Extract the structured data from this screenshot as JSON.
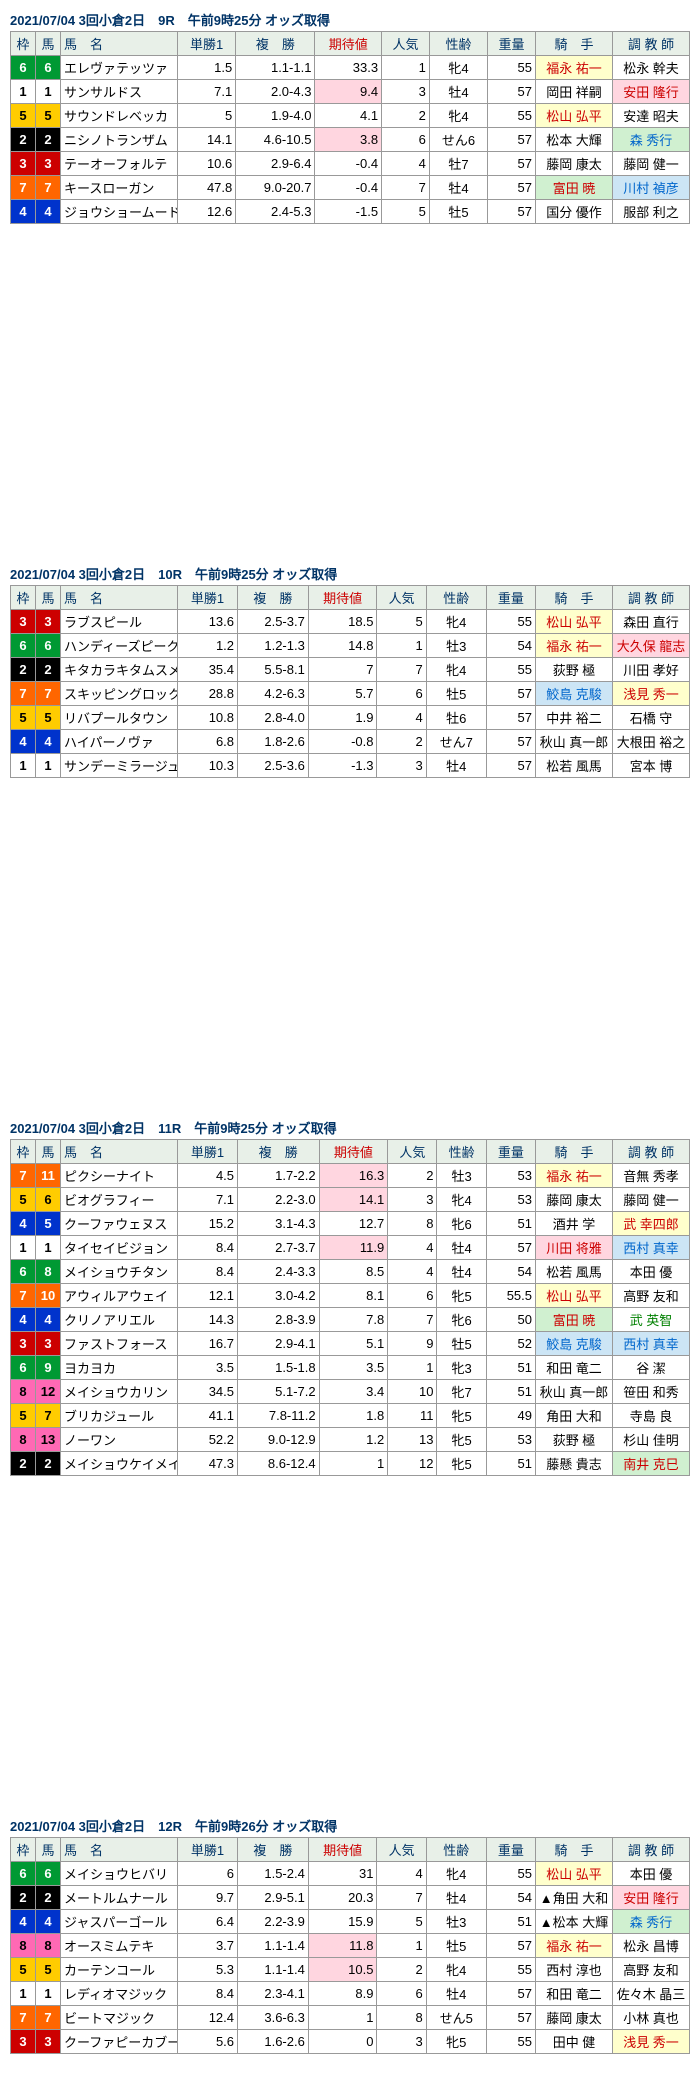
{
  "wakuColors": {
    "1": "#ffffff",
    "2": "#000000",
    "3": "#cc0000",
    "4": "#0033cc",
    "5": "#ffcc00",
    "6": "#009933",
    "7": "#ff6600",
    "8": "#ff69b4"
  },
  "wakuText": {
    "1": "#000",
    "2": "#fff",
    "3": "#fff",
    "4": "#fff",
    "5": "#000",
    "6": "#fff",
    "7": "#fff",
    "8": "#000"
  },
  "headers": [
    "枠",
    "馬",
    "馬　名",
    "単勝1",
    "複　勝",
    "期待値",
    "人気",
    "性齢",
    "重量",
    "騎　手",
    "調 教 師"
  ],
  "races": [
    {
      "title": "2021/07/04  3回小倉2日　9R　午前9時25分 オッズ取得",
      "rows": [
        {
          "w": 6,
          "u": 6,
          "name": "エレヴァテッツァ",
          "tan": "1.5",
          "fuku": "1.1-1.1",
          "exp": "33.3",
          "hl": "",
          "nin": 1,
          "sex": "牝4",
          "wt": 55,
          "j": "福永 祐一",
          "jc": "red-txt",
          "jhl": "hl-yellow",
          "t": "松永 幹夫",
          "tc": "",
          "thl": ""
        },
        {
          "w": 1,
          "u": 1,
          "name": "サンサルドス",
          "tan": "7.1",
          "fuku": "2.0-4.3",
          "exp": "9.4",
          "hl": "hl-pink",
          "nin": 3,
          "sex": "牡4",
          "wt": 57,
          "j": "岡田 祥嗣",
          "jc": "",
          "jhl": "",
          "t": "安田 隆行",
          "tc": "red-txt",
          "thl": "hl-pink"
        },
        {
          "w": 5,
          "u": 5,
          "name": "サウンドレベッカ",
          "tan": "5",
          "fuku": "1.9-4.0",
          "exp": "4.1",
          "hl": "",
          "nin": 2,
          "sex": "牝4",
          "wt": 55,
          "j": "松山 弘平",
          "jc": "red-txt",
          "jhl": "hl-yellow",
          "t": "安達 昭夫",
          "tc": "",
          "thl": ""
        },
        {
          "w": 2,
          "u": 2,
          "name": "ニシノトランザム",
          "tan": "14.1",
          "fuku": "4.6-10.5",
          "exp": "3.8",
          "hl": "hl-pink",
          "nin": 6,
          "sex": "せん6",
          "wt": 57,
          "j": "松本 大輝",
          "jc": "",
          "jhl": "",
          "t": "森 秀行",
          "tc": "blue-txt",
          "thl": "hl-green"
        },
        {
          "w": 3,
          "u": 3,
          "name": "テーオーフォルテ",
          "tan": "10.6",
          "fuku": "2.9-6.4",
          "exp": "-0.4",
          "hl": "",
          "nin": 4,
          "sex": "牡7",
          "wt": 57,
          "j": "藤岡 康太",
          "jc": "",
          "jhl": "",
          "t": "藤岡 健一",
          "tc": "",
          "thl": ""
        },
        {
          "w": 7,
          "u": 7,
          "name": "キースローガン",
          "tan": "47.8",
          "fuku": "9.0-20.7",
          "exp": "-0.4",
          "hl": "",
          "nin": 7,
          "sex": "牡4",
          "wt": 57,
          "j": "富田 暁",
          "jc": "red-txt",
          "jhl": "hl-green",
          "t": "川村 禎彦",
          "tc": "blue-txt",
          "thl": "hl-blue"
        },
        {
          "w": 4,
          "u": 4,
          "name": "ジョウショームード",
          "tan": "12.6",
          "fuku": "2.4-5.3",
          "exp": "-1.5",
          "hl": "",
          "nin": 5,
          "sex": "牡5",
          "wt": 57,
          "j": "国分 優作",
          "jc": "",
          "jhl": "",
          "t": "服部 利之",
          "tc": "",
          "thl": ""
        }
      ]
    },
    {
      "title": "2021/07/04  3回小倉2日　10R　午前9時25分 オッズ取得",
      "rows": [
        {
          "w": 3,
          "u": 3,
          "name": "ラブスピール",
          "tan": "13.6",
          "fuku": "2.5-3.7",
          "exp": "18.5",
          "hl": "",
          "nin": 5,
          "sex": "牝4",
          "wt": 55,
          "j": "松山 弘平",
          "jc": "red-txt",
          "jhl": "hl-yellow",
          "t": "森田 直行",
          "tc": "",
          "thl": ""
        },
        {
          "w": 6,
          "u": 6,
          "name": "ハンディーズピーク",
          "tan": "1.2",
          "fuku": "1.2-1.3",
          "exp": "14.8",
          "hl": "",
          "nin": 1,
          "sex": "牡3",
          "wt": 54,
          "j": "福永 祐一",
          "jc": "red-txt",
          "jhl": "hl-yellow",
          "t": "大久保 龍志",
          "tc": "red-txt",
          "thl": "hl-pink"
        },
        {
          "w": 2,
          "u": 2,
          "name": "キタカラキタムスメ",
          "tan": "35.4",
          "fuku": "5.5-8.1",
          "exp": "7",
          "hl": "",
          "nin": 7,
          "sex": "牝4",
          "wt": 55,
          "j": "荻野 極",
          "jc": "",
          "jhl": "",
          "t": "川田 孝好",
          "tc": "",
          "thl": ""
        },
        {
          "w": 7,
          "u": 7,
          "name": "スキッピングロック",
          "tan": "28.8",
          "fuku": "4.2-6.3",
          "exp": "5.7",
          "hl": "",
          "nin": 6,
          "sex": "牡5",
          "wt": 57,
          "j": "鮫島 克駿",
          "jc": "blue-txt",
          "jhl": "hl-blue",
          "t": "浅見 秀一",
          "tc": "red-txt",
          "thl": "hl-yellow"
        },
        {
          "w": 5,
          "u": 5,
          "name": "リバプールタウン",
          "tan": "10.8",
          "fuku": "2.8-4.0",
          "exp": "1.9",
          "hl": "",
          "nin": 4,
          "sex": "牡6",
          "wt": 57,
          "j": "中井 裕二",
          "jc": "",
          "jhl": "",
          "t": "石橋 守",
          "tc": "",
          "thl": ""
        },
        {
          "w": 4,
          "u": 4,
          "name": "ハイパーノヴァ",
          "tan": "6.8",
          "fuku": "1.8-2.6",
          "exp": "-0.8",
          "hl": "",
          "nin": 2,
          "sex": "せん7",
          "wt": 57,
          "j": "秋山 真一郎",
          "jc": "",
          "jhl": "",
          "t": "大根田 裕之",
          "tc": "",
          "thl": ""
        },
        {
          "w": 1,
          "u": 1,
          "name": "サンデーミラージュ",
          "tan": "10.3",
          "fuku": "2.5-3.6",
          "exp": "-1.3",
          "hl": "",
          "nin": 3,
          "sex": "牡4",
          "wt": 57,
          "j": "松若 風馬",
          "jc": "",
          "jhl": "",
          "t": "宮本 博",
          "tc": "",
          "thl": ""
        }
      ]
    },
    {
      "title": "2021/07/04  3回小倉2日　11R　午前9時25分 オッズ取得",
      "rows": [
        {
          "w": 7,
          "u": 11,
          "name": "ピクシーナイト",
          "tan": "4.5",
          "fuku": "1.7-2.2",
          "exp": "16.3",
          "hl": "hl-pink",
          "nin": 2,
          "sex": "牡3",
          "wt": 53,
          "j": "福永 祐一",
          "jc": "red-txt",
          "jhl": "hl-yellow",
          "t": "音無 秀孝",
          "tc": "",
          "thl": ""
        },
        {
          "w": 5,
          "u": 6,
          "name": "ビオグラフィー",
          "tan": "7.1",
          "fuku": "2.2-3.0",
          "exp": "14.1",
          "hl": "hl-pink",
          "nin": 3,
          "sex": "牝4",
          "wt": 53,
          "j": "藤岡 康太",
          "jc": "",
          "jhl": "",
          "t": "藤岡 健一",
          "tc": "",
          "thl": ""
        },
        {
          "w": 4,
          "u": 5,
          "name": "クーファウェヌス",
          "tan": "15.2",
          "fuku": "3.1-4.3",
          "exp": "12.7",
          "hl": "",
          "nin": 8,
          "sex": "牝6",
          "wt": 51,
          "j": "酒井 学",
          "jc": "",
          "jhl": "",
          "t": "武 幸四郎",
          "tc": "red-txt",
          "thl": "hl-yellow"
        },
        {
          "w": 1,
          "u": 1,
          "name": "タイセイビジョン",
          "tan": "8.4",
          "fuku": "2.7-3.7",
          "exp": "11.9",
          "hl": "hl-pink",
          "nin": 4,
          "sex": "牡4",
          "wt": 57,
          "j": "川田 将雅",
          "jc": "red-txt",
          "jhl": "hl-pink",
          "t": "西村 真幸",
          "tc": "blue-txt",
          "thl": "hl-blue"
        },
        {
          "w": 6,
          "u": 8,
          "name": "メイショウチタン",
          "tan": "8.4",
          "fuku": "2.4-3.3",
          "exp": "8.5",
          "hl": "",
          "nin": 4,
          "sex": "牡4",
          "wt": 54,
          "j": "松若 風馬",
          "jc": "",
          "jhl": "",
          "t": "本田 優",
          "tc": "",
          "thl": ""
        },
        {
          "w": 7,
          "u": 10,
          "name": "アウィルアウェイ",
          "tan": "12.1",
          "fuku": "3.0-4.2",
          "exp": "8.1",
          "hl": "",
          "nin": 6,
          "sex": "牝5",
          "wt": "55.5",
          "j": "松山 弘平",
          "jc": "red-txt",
          "jhl": "hl-yellow",
          "t": "高野 友和",
          "tc": "",
          "thl": ""
        },
        {
          "w": 4,
          "u": 4,
          "name": "クリノアリエル",
          "tan": "14.3",
          "fuku": "2.8-3.9",
          "exp": "7.8",
          "hl": "",
          "nin": 7,
          "sex": "牝6",
          "wt": 50,
          "j": "富田 暁",
          "jc": "red-txt",
          "jhl": "hl-green",
          "t": "武 英智",
          "tc": "green-txt",
          "thl": ""
        },
        {
          "w": 3,
          "u": 3,
          "name": "ファストフォース",
          "tan": "16.7",
          "fuku": "2.9-4.1",
          "exp": "5.1",
          "hl": "",
          "nin": 9,
          "sex": "牡5",
          "wt": 52,
          "j": "鮫島 克駿",
          "jc": "blue-txt",
          "jhl": "hl-blue",
          "t": "西村 真幸",
          "tc": "blue-txt",
          "thl": "hl-blue"
        },
        {
          "w": 6,
          "u": 9,
          "name": "ヨカヨカ",
          "tan": "3.5",
          "fuku": "1.5-1.8",
          "exp": "3.5",
          "hl": "",
          "nin": 1,
          "sex": "牝3",
          "wt": 51,
          "j": "和田 竜二",
          "jc": "",
          "jhl": "",
          "t": "谷 潔",
          "tc": "",
          "thl": ""
        },
        {
          "w": 8,
          "u": 12,
          "name": "メイショウカリン",
          "tan": "34.5",
          "fuku": "5.1-7.2",
          "exp": "3.4",
          "hl": "",
          "nin": 10,
          "sex": "牝7",
          "wt": 51,
          "j": "秋山 真一郎",
          "jc": "",
          "jhl": "",
          "t": "笹田 和秀",
          "tc": "",
          "thl": ""
        },
        {
          "w": 5,
          "u": 7,
          "name": "ブリカジュール",
          "tan": "41.1",
          "fuku": "7.8-11.2",
          "exp": "1.8",
          "hl": "",
          "nin": 11,
          "sex": "牝5",
          "wt": 49,
          "j": "角田 大和",
          "jc": "",
          "jhl": "",
          "t": "寺島 良",
          "tc": "",
          "thl": ""
        },
        {
          "w": 8,
          "u": 13,
          "name": "ノーワン",
          "tan": "52.2",
          "fuku": "9.0-12.9",
          "exp": "1.2",
          "hl": "",
          "nin": 13,
          "sex": "牝5",
          "wt": 53,
          "j": "荻野 極",
          "jc": "",
          "jhl": "",
          "t": "杉山 佳明",
          "tc": "",
          "thl": ""
        },
        {
          "w": 2,
          "u": 2,
          "name": "メイショウケイメイ",
          "tan": "47.3",
          "fuku": "8.6-12.4",
          "exp": "1",
          "hl": "",
          "nin": 12,
          "sex": "牝5",
          "wt": 51,
          "j": "藤懸 貴志",
          "jc": "",
          "jhl": "",
          "t": "南井 克巳",
          "tc": "red-txt",
          "thl": "hl-green"
        }
      ]
    },
    {
      "title": "2021/07/04  3回小倉2日　12R　午前9時26分 オッズ取得",
      "rows": [
        {
          "w": 6,
          "u": 6,
          "name": "メイショウヒバリ",
          "tan": "6",
          "fuku": "1.5-2.4",
          "exp": "31",
          "hl": "",
          "nin": 4,
          "sex": "牝4",
          "wt": 55,
          "j": "松山 弘平",
          "jc": "red-txt",
          "jhl": "hl-yellow",
          "t": "本田 優",
          "tc": "",
          "thl": ""
        },
        {
          "w": 2,
          "u": 2,
          "name": "メートルムナール",
          "tan": "9.7",
          "fuku": "2.9-5.1",
          "exp": "20.3",
          "hl": "",
          "nin": 7,
          "sex": "牡4",
          "wt": 54,
          "j": "▲角田 大和",
          "jc": "",
          "jhl": "",
          "t": "安田 隆行",
          "tc": "red-txt",
          "thl": "hl-pink"
        },
        {
          "w": 4,
          "u": 4,
          "name": "ジャスパーゴール",
          "tan": "6.4",
          "fuku": "2.2-3.9",
          "exp": "15.9",
          "hl": "",
          "nin": 5,
          "sex": "牡3",
          "wt": 51,
          "j": "▲松本 大輝",
          "jc": "",
          "jhl": "",
          "t": "森 秀行",
          "tc": "blue-txt",
          "thl": "hl-green"
        },
        {
          "w": 8,
          "u": 8,
          "name": "オースミムテキ",
          "tan": "3.7",
          "fuku": "1.1-1.4",
          "exp": "11.8",
          "hl": "hl-pink",
          "nin": 1,
          "sex": "牡5",
          "wt": 57,
          "j": "福永 祐一",
          "jc": "red-txt",
          "jhl": "hl-yellow",
          "t": "松永 昌博",
          "tc": "",
          "thl": ""
        },
        {
          "w": 5,
          "u": 5,
          "name": "カーテンコール",
          "tan": "5.3",
          "fuku": "1.1-1.4",
          "exp": "10.5",
          "hl": "hl-pink",
          "nin": 2,
          "sex": "牝4",
          "wt": 55,
          "j": "西村 淳也",
          "jc": "",
          "jhl": "",
          "t": "高野 友和",
          "tc": "",
          "thl": ""
        },
        {
          "w": 1,
          "u": 1,
          "name": "レディオマジック",
          "tan": "8.4",
          "fuku": "2.3-4.1",
          "exp": "8.9",
          "hl": "",
          "nin": 6,
          "sex": "牡4",
          "wt": 57,
          "j": "和田 竜二",
          "jc": "",
          "jhl": "",
          "t": "佐々木 晶三",
          "tc": "",
          "thl": ""
        },
        {
          "w": 7,
          "u": 7,
          "name": "ビートマジック",
          "tan": "12.4",
          "fuku": "3.6-6.3",
          "exp": "1",
          "hl": "",
          "nin": 8,
          "sex": "せん5",
          "wt": 57,
          "j": "藤岡 康太",
          "jc": "",
          "jhl": "",
          "t": "小林 真也",
          "tc": "",
          "thl": ""
        },
        {
          "w": 3,
          "u": 3,
          "name": "クーファピーカブー",
          "tan": "5.6",
          "fuku": "1.6-2.6",
          "exp": "0",
          "hl": "",
          "nin": 3,
          "sex": "牝5",
          "wt": 55,
          "j": "田中 健",
          "jc": "",
          "jhl": "",
          "t": "浅見 秀一",
          "tc": "red-txt",
          "thl": "hl-yellow"
        }
      ]
    }
  ]
}
